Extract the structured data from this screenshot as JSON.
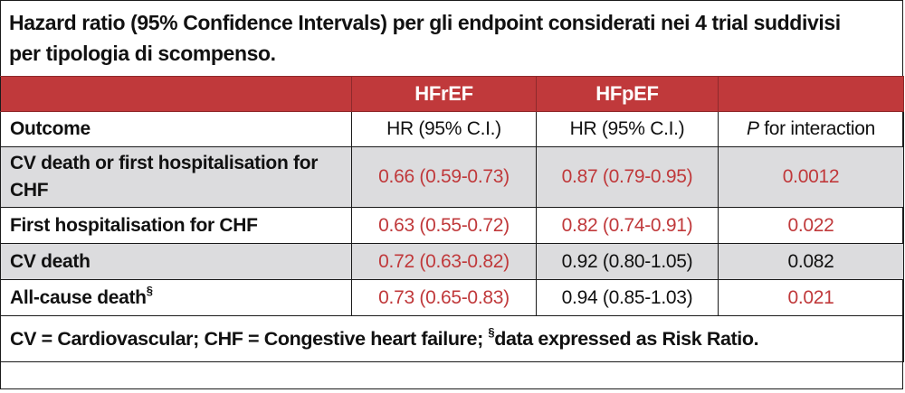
{
  "caption": {
    "line1": "Hazard ratio (95% Confidence Intervals) per gli endpoint considerati nei 4 trial suddivisi",
    "line2": "per tipologia di scompenso."
  },
  "header": {
    "group1": "HFrEF",
    "group2": "HFpEF"
  },
  "subheader": {
    "outcome": "Outcome",
    "hr1": "HR (95% C.I.)",
    "hr2": "HR (95% C.I.)",
    "p_italic": "P",
    "p_rest": " for interaction"
  },
  "rows": [
    {
      "outcome": "CV death or first hospitalisation for CHF",
      "hfref": "0.66 (0.59-0.73)",
      "hfpef": "0.87 (0.79-0.95)",
      "p": "0.0012"
    },
    {
      "outcome": "First hospitalisation for CHF",
      "hfref": "0.63 (0.55-0.72)",
      "hfpef": "0.82 (0.74-0.91)",
      "p": "0.022"
    },
    {
      "outcome": "CV death",
      "hfref": "0.72 (0.63-0.82)",
      "hfpef": "0.92 (0.80-1.05)",
      "p": "0.082"
    },
    {
      "outcome": "All-cause death",
      "outcome_sup": "§",
      "hfref": "0.73 (0.65-0.83)",
      "hfpef": "0.94 (0.85-1.03)",
      "p": "0.021"
    }
  ],
  "footnote": {
    "text1": "CV = Cardiovascular; CHF = Congestive heart failure; ",
    "sup": "§",
    "text2": "data expressed as Risk Ratio."
  },
  "colors": {
    "accent_red": "#c0393b",
    "row_shade": "#dcdcde",
    "text_black": "#111111"
  }
}
